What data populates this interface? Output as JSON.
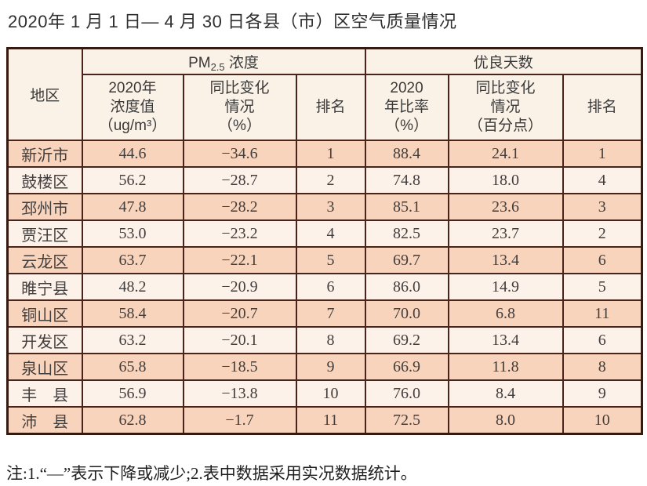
{
  "page": {
    "title": "2020年 1 月 1 日— 4 月 30 日各县（市）区空气质量情况",
    "note": "注:1.“—”表示下降或减少;2.表中数据采用实况数据统计。"
  },
  "colors": {
    "row_odd_bg": "#f9d4bd",
    "row_even_bg": "#fdf2e9",
    "header_bg": "#fbf2e7",
    "border_outer": "#36190f",
    "border_inner": "#4a241b",
    "text": "#423e3d"
  },
  "table": {
    "corner_header": "地区",
    "groups": {
      "pm": {
        "prefix": "PM",
        "sub": "2.5",
        "suffix": " 浓度"
      },
      "good_days": "优良天数"
    },
    "sub_headers": {
      "pm_value": "2020年\n浓度值\n（ug/m³）",
      "pm_change": "同比变化\n情况\n（%）",
      "pm_rank": "排名",
      "ratio": "2020\n年比率\n（%）",
      "ratio_change": "同比变化\n情况\n（百分点）",
      "ratio_rank": "排名"
    },
    "rows": [
      {
        "region": "新沂市",
        "pm_value": "44.6",
        "pm_change": "−34.6",
        "pm_rank": "1",
        "ratio": "88.4",
        "ratio_change": "24.1",
        "ratio_rank": "1"
      },
      {
        "region": "鼓楼区",
        "pm_value": "56.2",
        "pm_change": "−28.7",
        "pm_rank": "2",
        "ratio": "74.8",
        "ratio_change": "18.0",
        "ratio_rank": "4"
      },
      {
        "region": "邳州市",
        "pm_value": "47.8",
        "pm_change": "−28.2",
        "pm_rank": "3",
        "ratio": "85.1",
        "ratio_change": "23.6",
        "ratio_rank": "3"
      },
      {
        "region": "贾汪区",
        "pm_value": "53.0",
        "pm_change": "−23.2",
        "pm_rank": "4",
        "ratio": "82.5",
        "ratio_change": "23.7",
        "ratio_rank": "2"
      },
      {
        "region": "云龙区",
        "pm_value": "63.7",
        "pm_change": "−22.1",
        "pm_rank": "5",
        "ratio": "69.7",
        "ratio_change": "13.4",
        "ratio_rank": "6"
      },
      {
        "region": "睢宁县",
        "pm_value": "48.2",
        "pm_change": "−20.9",
        "pm_rank": "6",
        "ratio": "86.0",
        "ratio_change": "14.9",
        "ratio_rank": "5"
      },
      {
        "region": "铜山区",
        "pm_value": "58.4",
        "pm_change": "−20.7",
        "pm_rank": "7",
        "ratio": "70.0",
        "ratio_change": "6.8",
        "ratio_rank": "11"
      },
      {
        "region": "开发区",
        "pm_value": "63.2",
        "pm_change": "−20.1",
        "pm_rank": "8",
        "ratio": "69.2",
        "ratio_change": "13.4",
        "ratio_rank": "6"
      },
      {
        "region": "泉山区",
        "pm_value": "65.8",
        "pm_change": "−18.5",
        "pm_rank": "9",
        "ratio": "66.9",
        "ratio_change": "11.8",
        "ratio_rank": "8"
      },
      {
        "region": "丰　县",
        "pm_value": "56.9",
        "pm_change": "−13.8",
        "pm_rank": "10",
        "ratio": "76.0",
        "ratio_change": "8.4",
        "ratio_rank": "9"
      },
      {
        "region": "沛　县",
        "pm_value": "62.8",
        "pm_change": "−1.7",
        "pm_rank": "11",
        "ratio": "72.5",
        "ratio_change": "8.0",
        "ratio_rank": "10"
      }
    ]
  }
}
